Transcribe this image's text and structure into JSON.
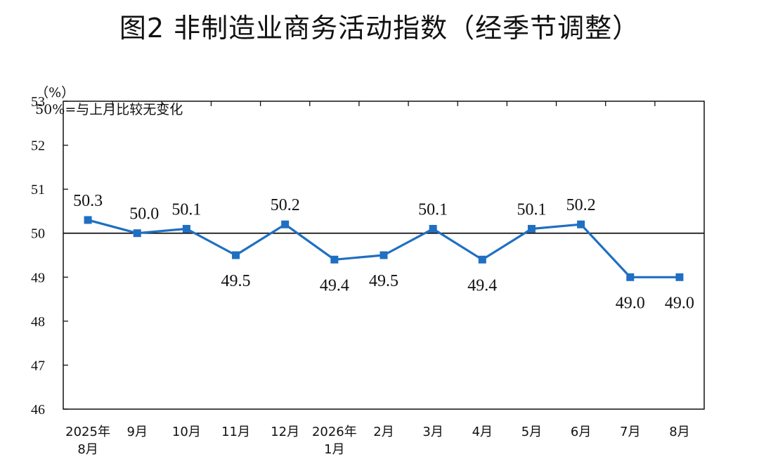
{
  "chart_data": {
    "type": "line",
    "title": "图2  非制造业商务活动指数（经季节调整）",
    "ylabel": "（%）",
    "annotation": "50%=与上月比较无变化",
    "reference_line": 50,
    "ylim": [
      46,
      53
    ],
    "yticks": [
      "46",
      "47",
      "48",
      "49",
      "50",
      "51",
      "52",
      "53"
    ],
    "categories": [
      [
        "2025年",
        "8月"
      ],
      [
        "9月"
      ],
      [
        "10月"
      ],
      [
        "11月"
      ],
      [
        "12月"
      ],
      [
        "2026年",
        "1月"
      ],
      [
        "2月"
      ],
      [
        "3月"
      ],
      [
        "4月"
      ],
      [
        "5月"
      ],
      [
        "6月"
      ],
      [
        "7月"
      ],
      [
        "8月"
      ]
    ],
    "values": [
      50.3,
      50.0,
      50.1,
      49.5,
      50.2,
      49.4,
      49.5,
      50.1,
      49.4,
      50.1,
      50.2,
      49.0,
      49.0
    ],
    "data_labels": [
      "50.3",
      "50.0",
      "50.1",
      "49.5",
      "50.2",
      "49.4",
      "49.5",
      "50.1",
      "49.4",
      "50.1",
      "50.2",
      "49.0",
      "49.0"
    ],
    "grid": false,
    "legend": "none",
    "series_color": "#1f6fc2"
  }
}
